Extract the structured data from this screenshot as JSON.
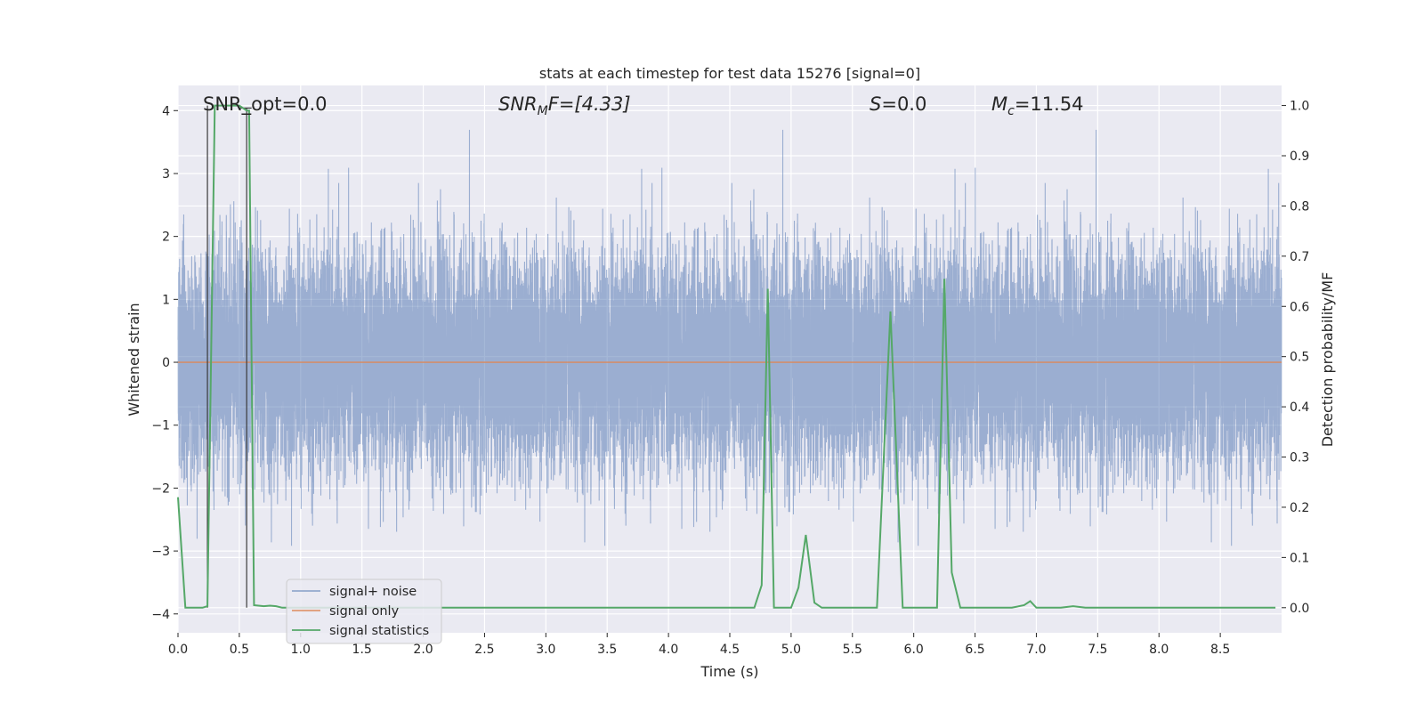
{
  "chart_data": {
    "type": "line",
    "title": "stats at each timestep for test data 15276 [signal=0]",
    "xlabel": "Time (s)",
    "ylabel_left": "Whitened strain",
    "ylabel_right": "Detection probability/MF",
    "xlim": [
      0.0,
      9.0
    ],
    "ylim_left": [
      -4.3,
      4.4
    ],
    "ylim_right": [
      -0.05,
      1.04
    ],
    "xticks": [
      "0.0",
      "0.5",
      "1.0",
      "1.5",
      "2.0",
      "2.5",
      "3.0",
      "3.5",
      "4.0",
      "4.5",
      "5.0",
      "5.5",
      "6.0",
      "6.5",
      "7.0",
      "7.5",
      "8.0",
      "8.5"
    ],
    "yticks_left": [
      "4",
      "3",
      "2",
      "1",
      "0",
      "−1",
      "−2",
      "−3",
      "−4"
    ],
    "yticks_left_values": [
      4,
      3,
      2,
      1,
      0,
      -1,
      -2,
      -3,
      -4
    ],
    "yticks_right": [
      "1.0",
      "0.9",
      "0.8",
      "0.7",
      "0.6",
      "0.5",
      "0.4",
      "0.3",
      "0.2",
      "0.1",
      "0.0"
    ],
    "yticks_right_values": [
      1.0,
      0.9,
      0.8,
      0.7,
      0.6,
      0.5,
      0.4,
      0.3,
      0.2,
      0.1,
      0.0
    ],
    "grid": true,
    "legend_position": "lower-left",
    "annotations": {
      "snr_opt": "SNR_opt=0.0",
      "snr_mf_main": "SNR",
      "snr_mf_sub": "M",
      "snr_mf_rest": "F=[4.33]",
      "s_main": "S",
      "s_rest": "=0.0",
      "mc_main": "M",
      "mc_sub": "c",
      "mc_rest": "=11.54"
    },
    "series": [
      {
        "name": "signal+ noise",
        "color": "#4c72b0",
        "axis": "left",
        "kind": "noise",
        "sample_rate_hz": 2048,
        "duration_s": 9.0,
        "std": 0.75
      },
      {
        "name": "signal only",
        "color": "#dd8452",
        "axis": "left",
        "x": [
          0.0,
          9.0
        ],
        "y": [
          0.0,
          0.0
        ]
      },
      {
        "name": "signal statistics",
        "color": "#55a868",
        "axis": "right",
        "x": [
          0.0,
          0.06,
          0.1,
          0.15,
          0.2,
          0.24,
          0.3,
          0.5,
          0.56,
          0.58,
          0.62,
          0.7,
          0.75,
          0.8,
          0.85,
          1.0,
          1.5,
          2.0,
          2.5,
          3.0,
          3.5,
          4.0,
          4.5,
          4.7,
          4.76,
          4.81,
          4.86,
          4.94,
          5.0,
          5.06,
          5.12,
          5.19,
          5.25,
          5.4,
          5.5,
          5.6,
          5.7,
          5.81,
          5.91,
          6.0,
          6.1,
          6.19,
          6.25,
          6.31,
          6.38,
          6.5,
          6.7,
          6.8,
          6.9,
          6.95,
          7.0,
          7.1,
          7.2,
          7.3,
          7.4,
          7.5,
          8.0,
          8.5,
          8.95
        ],
        "y": [
          0.22,
          0.0,
          0.0,
          0.0,
          0.0,
          0.003,
          1.0,
          1.0,
          0.99,
          0.99,
          0.005,
          0.003,
          0.004,
          0.003,
          0.0,
          0.0,
          0.0,
          0.0,
          0.0,
          0.0,
          0.0,
          0.0,
          0.0,
          0.0,
          0.045,
          0.635,
          0.0,
          0.0,
          0.0,
          0.04,
          0.145,
          0.01,
          0.0,
          0.0,
          0.0,
          0.0,
          0.0,
          0.59,
          0.0,
          0.0,
          0.0,
          0.0,
          0.655,
          0.07,
          0.0,
          0.0,
          0.0,
          0.0,
          0.005,
          0.013,
          0.0,
          0.0,
          0.0,
          0.003,
          0.0,
          0.0,
          0.0,
          0.0,
          0.0
        ]
      }
    ]
  }
}
